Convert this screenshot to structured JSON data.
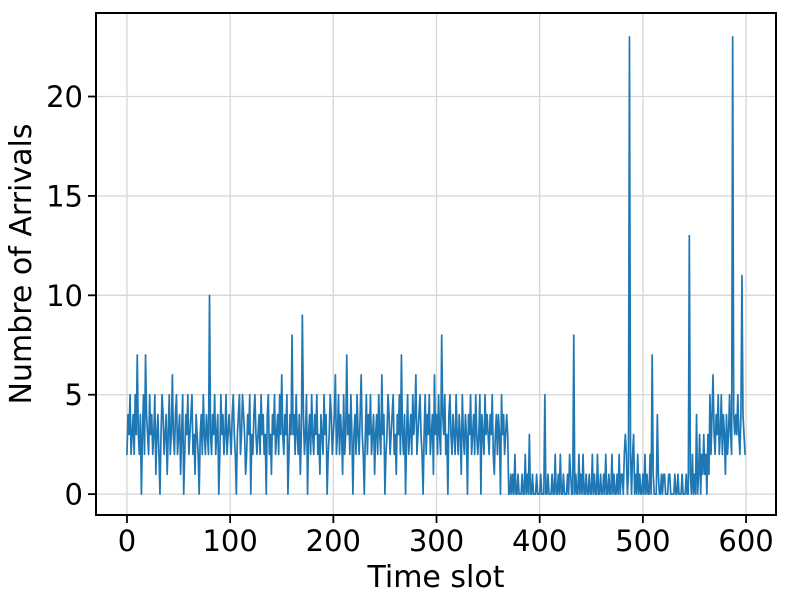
{
  "chart_data": {
    "type": "line",
    "title": "",
    "xlabel": "Time slot",
    "ylabel": "Numbre of Arrivals",
    "x_ticks": [
      0,
      100,
      200,
      300,
      400,
      500,
      600
    ],
    "y_ticks": [
      0,
      5,
      10,
      15,
      20
    ],
    "xlim": [
      -30,
      629
    ],
    "ylim": [
      -1.05,
      24.2
    ],
    "grid": true,
    "legend": "none",
    "line_color": "#1f77b4",
    "grid_color": "#d6d6d6",
    "frame_color": "#000000",
    "x_start": 0,
    "x_step": 1,
    "series_name": "arrivals-per-slot",
    "values": [
      2,
      4,
      3,
      5,
      2,
      3,
      4,
      2,
      5,
      3,
      7,
      3,
      2,
      4,
      0,
      3,
      5,
      2,
      7,
      4,
      3,
      2,
      5,
      3,
      4,
      2,
      3,
      5,
      1,
      3,
      4,
      2,
      0,
      3,
      5,
      4,
      2,
      3,
      4,
      1,
      3,
      5,
      2,
      3,
      6,
      3,
      2,
      4,
      5,
      2,
      3,
      4,
      1,
      3,
      5,
      0,
      2,
      4,
      3,
      5,
      2,
      3,
      4,
      5,
      2,
      3,
      1,
      4,
      3,
      2,
      0,
      3,
      4,
      2,
      5,
      3,
      2,
      4,
      3,
      2,
      10,
      3,
      2,
      4,
      3,
      5,
      2,
      3,
      4,
      0,
      2,
      5,
      3,
      4,
      2,
      3,
      5,
      2,
      3,
      4,
      3,
      2,
      4,
      5,
      3,
      2,
      0,
      3,
      4,
      5,
      2,
      3,
      5,
      4,
      3,
      1,
      2,
      4,
      3,
      5,
      0,
      3,
      2,
      4,
      5,
      3,
      2,
      3,
      4,
      2,
      5,
      3,
      4,
      2,
      3,
      0,
      4,
      5,
      2,
      3,
      1,
      4,
      3,
      5,
      2,
      3,
      4,
      2,
      5,
      3,
      6,
      3,
      2,
      4,
      3,
      5,
      0,
      2,
      4,
      3,
      8,
      3,
      4,
      2,
      5,
      3,
      2,
      4,
      1,
      3,
      9,
      4,
      2,
      3,
      5,
      0,
      3,
      4,
      2,
      5,
      3,
      2,
      4,
      3,
      5,
      2,
      3,
      1,
      4,
      3,
      2,
      5,
      3,
      4,
      0,
      2,
      3,
      5,
      4,
      2,
      3,
      4,
      6,
      2,
      3,
      5,
      2,
      4,
      3,
      1,
      5,
      2,
      3,
      7,
      3,
      4,
      2,
      5,
      3,
      0,
      3,
      4,
      2,
      5,
      3,
      2,
      4,
      6,
      3,
      2,
      0,
      3,
      5,
      2,
      4,
      3,
      5,
      2,
      3,
      4,
      1,
      3,
      4,
      2,
      5,
      3,
      2,
      6,
      3,
      4,
      0,
      2,
      3,
      5,
      4,
      2,
      3,
      4,
      5,
      2,
      3,
      1,
      4,
      3,
      5,
      2,
      7,
      3,
      2,
      4,
      0,
      3,
      5,
      2,
      3,
      4,
      2,
      5,
      3,
      4,
      6,
      2,
      3,
      4,
      5,
      3,
      2,
      0,
      3,
      5,
      2,
      4,
      3,
      5,
      2,
      3,
      4,
      1,
      6,
      3,
      4,
      2,
      5,
      3,
      2,
      8,
      4,
      3,
      5,
      2,
      3,
      0,
      4,
      5,
      3,
      2,
      4,
      3,
      2,
      5,
      3,
      2,
      4,
      3,
      1,
      5,
      3,
      2,
      4,
      3,
      0,
      4,
      3,
      5,
      2,
      3,
      4,
      2,
      5,
      3,
      2,
      3,
      5,
      0,
      4,
      3,
      2,
      5,
      3,
      4,
      3,
      2,
      4,
      3,
      5,
      2,
      1,
      3,
      4,
      2,
      4,
      3,
      0,
      5,
      3,
      4,
      2,
      3,
      4,
      3,
      0,
      0,
      1,
      0,
      1,
      0,
      2,
      0,
      0,
      1,
      0,
      0,
      0,
      1,
      0,
      0,
      2,
      0,
      1,
      0,
      3,
      0,
      0,
      1,
      0,
      0,
      0,
      1,
      0,
      0,
      0,
      1,
      0,
      0,
      0,
      5,
      0,
      0,
      1,
      0,
      0,
      0,
      1,
      0,
      0,
      2,
      0,
      0,
      1,
      0,
      2,
      0,
      0,
      1,
      0,
      0,
      0,
      1,
      0,
      2,
      1,
      0,
      0,
      8,
      0,
      1,
      0,
      0,
      2,
      0,
      1,
      0,
      2,
      0,
      0,
      1,
      0,
      0,
      1,
      0,
      0,
      2,
      0,
      1,
      0,
      0,
      2,
      0,
      0,
      1,
      0,
      0,
      1,
      0,
      2,
      0,
      0,
      1,
      0,
      0,
      2,
      0,
      1,
      0,
      0,
      1,
      0,
      2,
      0,
      1,
      1,
      0,
      2,
      3,
      2,
      0,
      1,
      23,
      2,
      0,
      2,
      3,
      0,
      1,
      0,
      2,
      0,
      1,
      0,
      0,
      1,
      0,
      2,
      0,
      1,
      0,
      0,
      2,
      0,
      7,
      1,
      0,
      0,
      0,
      4,
      1,
      0,
      0,
      1,
      0,
      1,
      1,
      0,
      0,
      0,
      1,
      1,
      0,
      0,
      0,
      0,
      1,
      0,
      0,
      1,
      0,
      0,
      0,
      1,
      0,
      0,
      0,
      1,
      0,
      0,
      13,
      1,
      0,
      2,
      0,
      1,
      0,
      4,
      0,
      1,
      3,
      0,
      2,
      1,
      3,
      1,
      2,
      0,
      3,
      1,
      5,
      2,
      4,
      6,
      3,
      2,
      4,
      3,
      5,
      2,
      3,
      5,
      2,
      4,
      3,
      1,
      4,
      2,
      3,
      5,
      3,
      2,
      23,
      4,
      3,
      4,
      3,
      5,
      3,
      2,
      4,
      11,
      4,
      3,
      2
    ]
  }
}
